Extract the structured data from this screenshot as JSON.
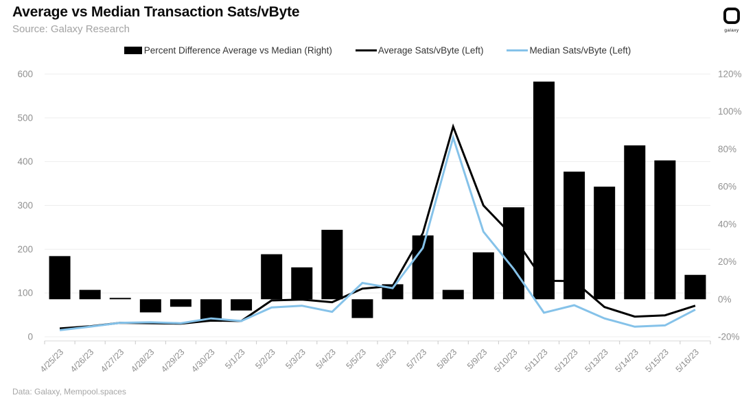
{
  "header": {
    "title": "Average vs Median Transaction Sats/vByte",
    "source": "Source: Galaxy Research",
    "logo_text": "galaxy"
  },
  "legend": {
    "items": [
      {
        "label": "Percent Difference Average vs Median (Right)",
        "marker": "bar",
        "color": "#000000"
      },
      {
        "label": "Average Sats/vByte (Left)",
        "marker": "line",
        "color": "#000000"
      },
      {
        "label": "Median Sats/vByte (Left)",
        "marker": "line",
        "color": "#85c2e9"
      }
    ]
  },
  "chart_data": {
    "type": "combo-bar-line",
    "categories": [
      "4/25/23",
      "4/26/23",
      "4/27/23",
      "4/28/23",
      "4/29/23",
      "4/30/23",
      "5/1/23",
      "5/2/23",
      "5/3/23",
      "5/4/23",
      "5/5/23",
      "5/6/23",
      "5/7/23",
      "5/8/23",
      "5/9/23",
      "5/10/23",
      "5/11/23",
      "5/12/23",
      "5/13/23",
      "5/14/23",
      "5/15/23",
      "5/16/23"
    ],
    "series": [
      {
        "name": "Percent Difference Average vs Median (Right)",
        "type": "bar",
        "axis": "right",
        "color": "#000000",
        "values": [
          23,
          5,
          0,
          -7,
          -4,
          -12,
          -6,
          24,
          17,
          37,
          -10,
          8,
          34,
          5,
          25,
          49,
          116,
          68,
          60,
          82,
          74,
          13
        ]
      },
      {
        "name": "Average Sats/vByte (Left)",
        "type": "line",
        "axis": "left",
        "color": "#000000",
        "values": [
          19,
          24,
          32,
          31,
          30,
          37,
          36,
          83,
          85,
          79,
          110,
          116,
          237,
          480,
          300,
          228,
          128,
          127,
          68,
          46,
          49,
          71
        ]
      },
      {
        "name": "Median Sats/vByte (Left)",
        "type": "line",
        "axis": "left",
        "color": "#85c2e9",
        "values": [
          15,
          23,
          32,
          33,
          31,
          42,
          36,
          67,
          71,
          57,
          123,
          111,
          203,
          455,
          240,
          155,
          55,
          72,
          42,
          23,
          26,
          62
        ]
      }
    ],
    "left_axis": {
      "min": 0,
      "max": 600,
      "tick_values": [
        0,
        100,
        200,
        300,
        400,
        500,
        600
      ],
      "tick_labels": [
        "0",
        "100",
        "200",
        "300",
        "400",
        "500",
        "600"
      ]
    },
    "right_axis": {
      "min": -20,
      "max": 120,
      "tick_values": [
        -20,
        0,
        20,
        40,
        60,
        80,
        100,
        120
      ],
      "tick_labels": [
        "-20%",
        "0%",
        "20%",
        "40%",
        "60%",
        "80%",
        "100%",
        "120%"
      ]
    },
    "grid": "horizontal",
    "legend_position": "top"
  },
  "footer": {
    "text": "Data: Galaxy, Mempool.spaces"
  }
}
